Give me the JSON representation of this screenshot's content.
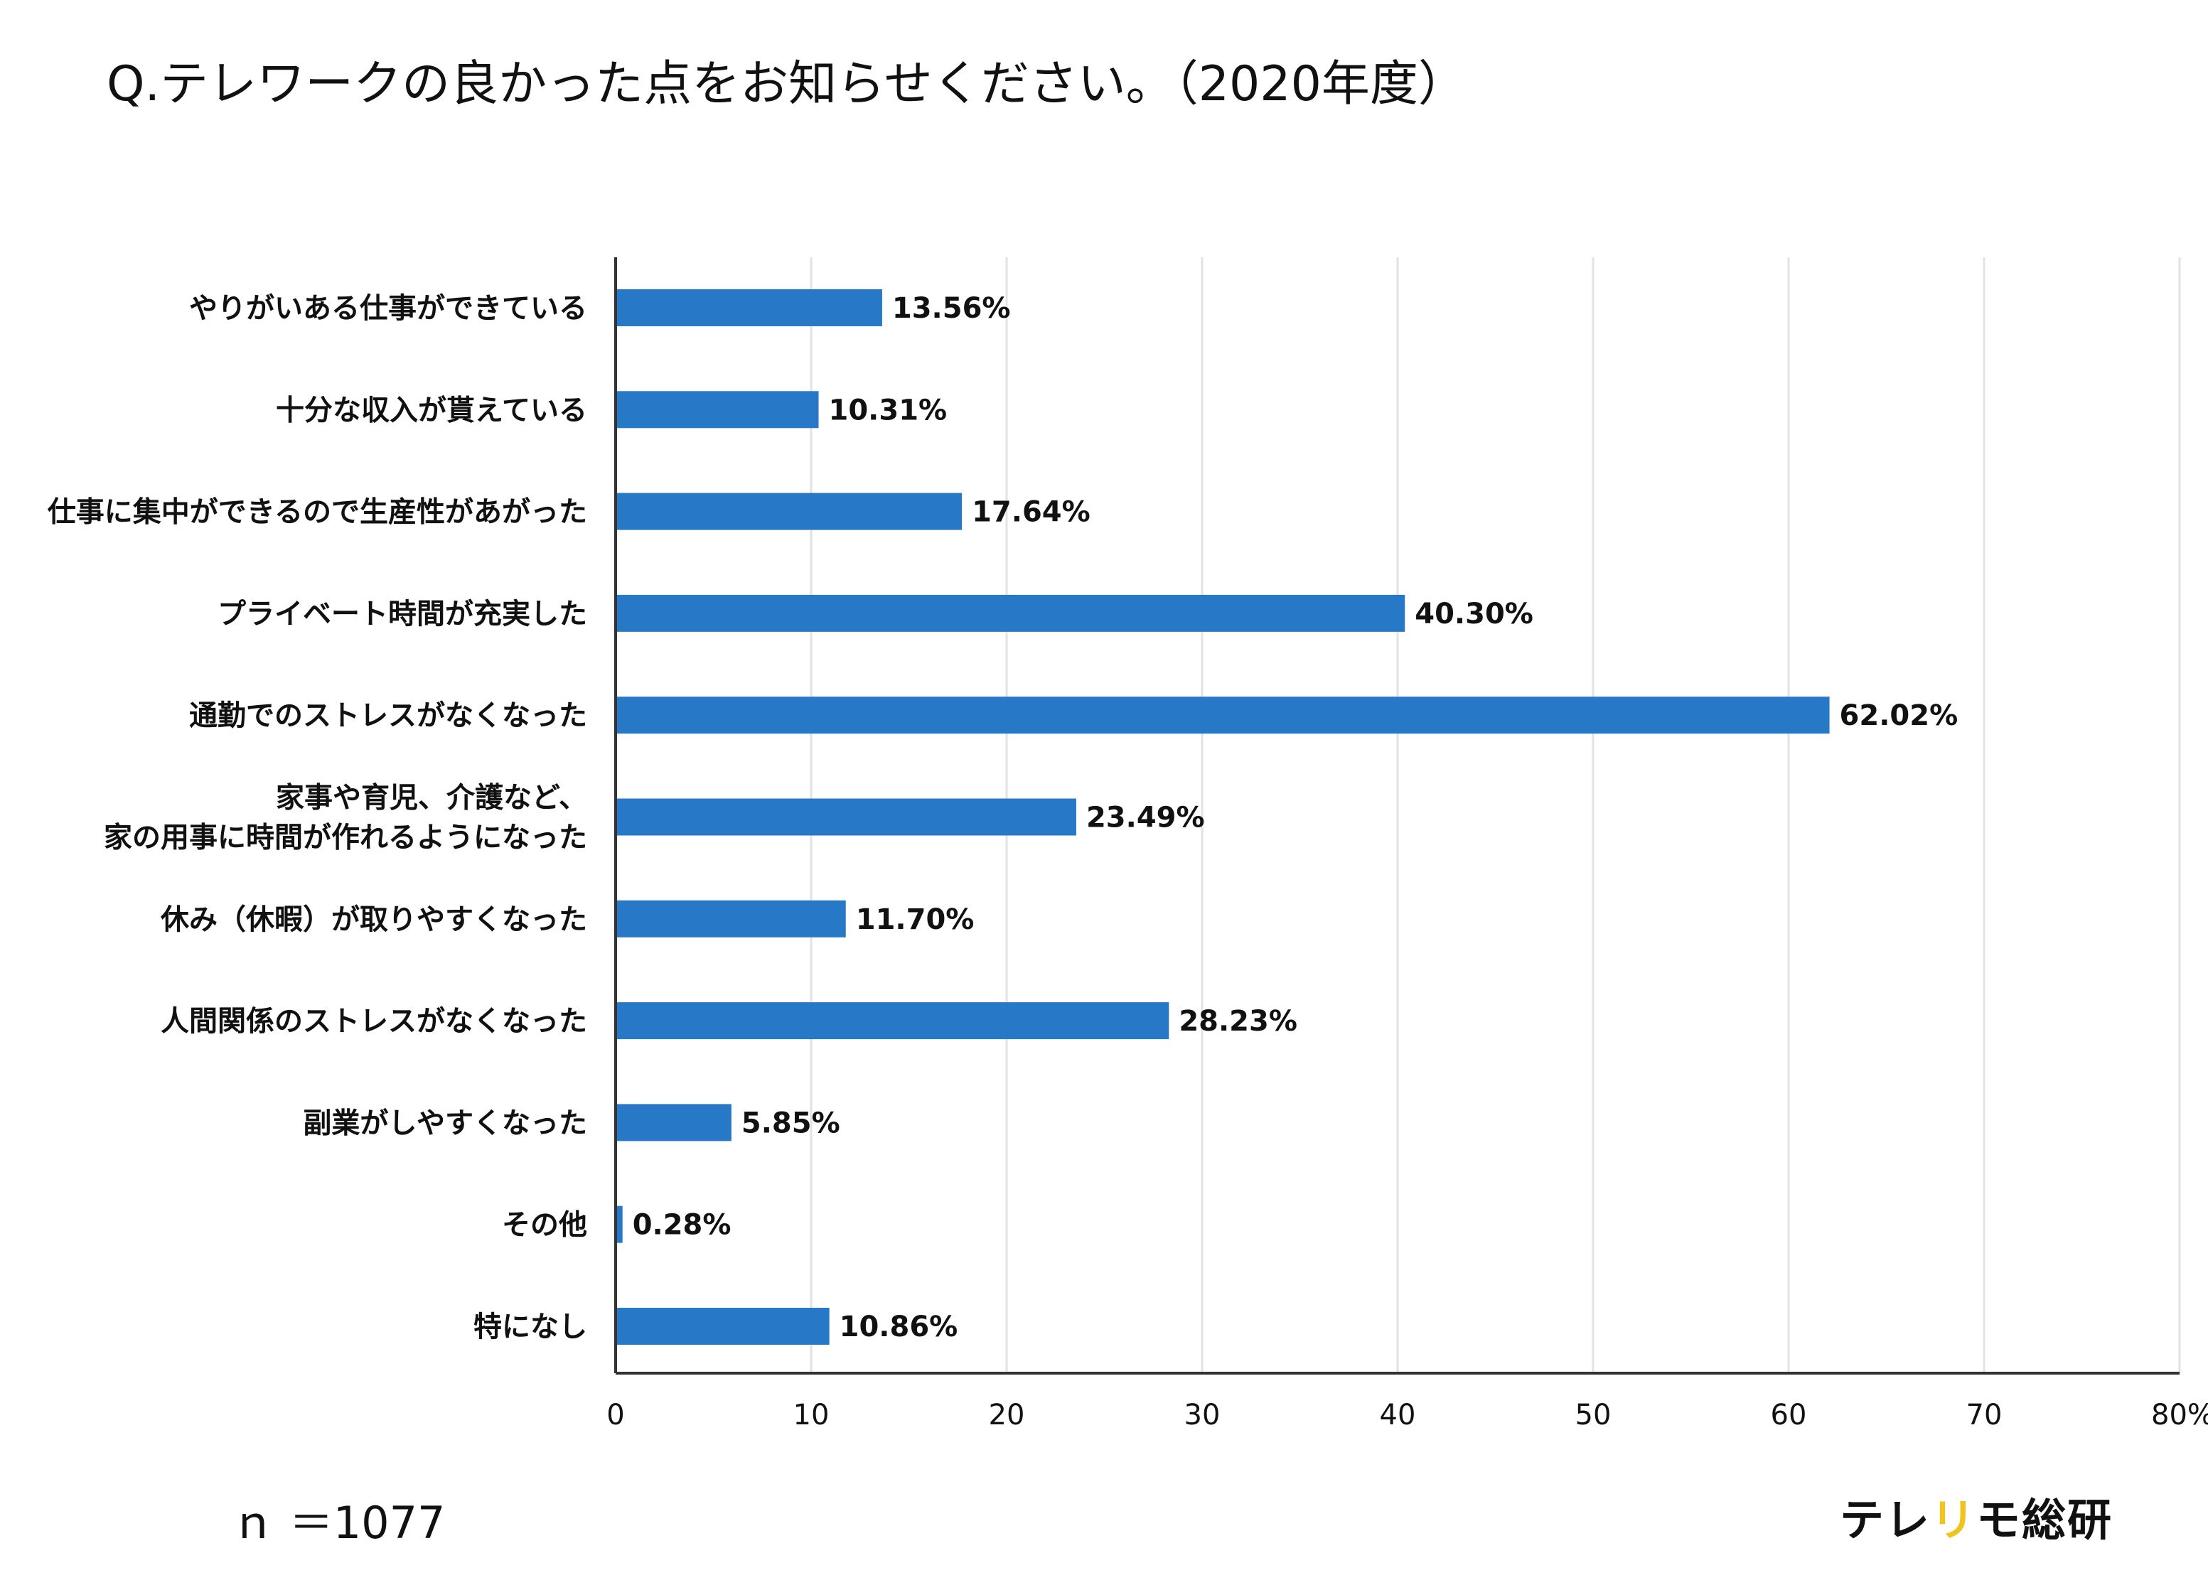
{
  "chart_data": {
    "type": "bar",
    "orientation": "horizontal",
    "title": "Q.テレワークの良かった点をお知らせください。（2020年度）",
    "categories": [
      [
        "やりがいある仕事ができている"
      ],
      [
        "十分な収入が貰えている"
      ],
      [
        "仕事に集中ができるので生産性があがった"
      ],
      [
        "プライベート時間が充実した"
      ],
      [
        "通勤でのストレスがなくなった"
      ],
      [
        "家事や育児、介護など、",
        "家の用事に時間が作れるようになった"
      ],
      [
        "休み（休暇）が取りやすくなった"
      ],
      [
        "人間関係のストレスがなくなった"
      ],
      [
        "副業がしやすくなった"
      ],
      [
        "その他"
      ],
      [
        "特になし"
      ]
    ],
    "values": [
      13.56,
      10.31,
      17.64,
      40.3,
      62.02,
      23.49,
      11.7,
      28.23,
      5.85,
      0.28,
      10.86
    ],
    "value_labels": [
      "13.56%",
      "10.31%",
      "17.64%",
      "40.30%",
      "62.02%",
      "23.49%",
      "11.70%",
      "28.23%",
      "5.85%",
      "0.28%",
      "10.86%"
    ],
    "xlim": [
      0,
      80
    ],
    "x_ticks": [
      "0",
      "10",
      "20",
      "30",
      "40",
      "50",
      "60",
      "70",
      "80%"
    ],
    "xlabel": "",
    "ylabel": "",
    "grid": "vertical",
    "bar_color": "#2878c8"
  },
  "footer": {
    "sample_size": "ｎ ＝1077",
    "brand_prefix": "テレ",
    "brand_accent": "リ",
    "brand_suffix": "モ総研",
    "brand_accent_color": "#f2c318"
  }
}
